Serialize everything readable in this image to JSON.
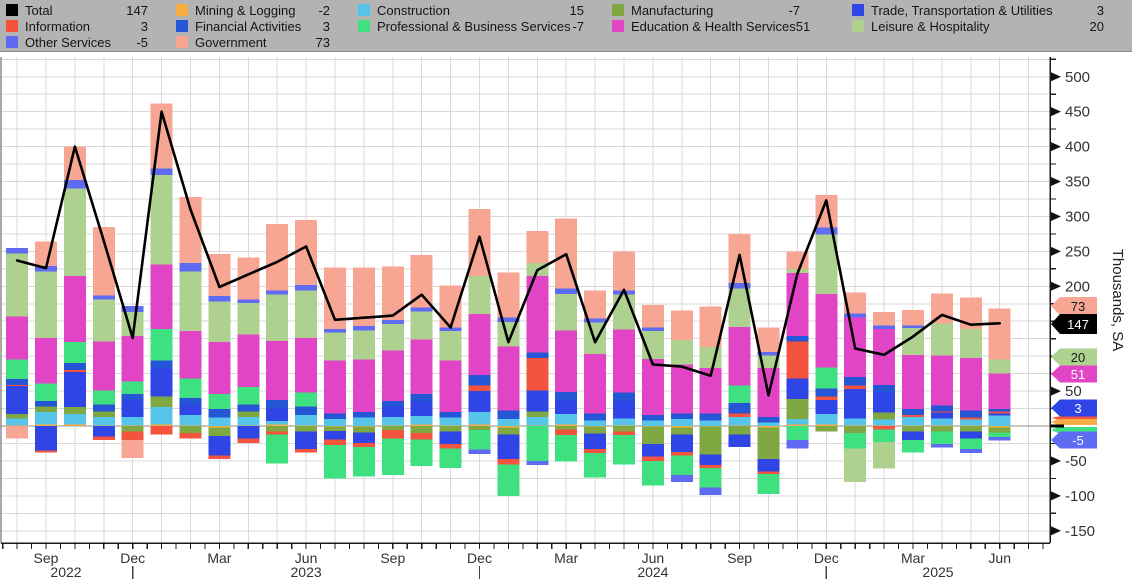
{
  "legend": {
    "items": [
      {
        "label": "Total",
        "value": "147",
        "color": "#000000"
      },
      {
        "label": "Mining & Logging",
        "value": "-2",
        "color": "#f6ad43"
      },
      {
        "label": "Construction",
        "value": "15",
        "color": "#57c4e9"
      },
      {
        "label": "Manufacturing",
        "value": "-7",
        "color": "#7fa842"
      },
      {
        "label": "Trade, Transportation & Utilities",
        "value": "3",
        "color": "#2f45e5"
      },
      {
        "label": "Information",
        "value": "3",
        "color": "#f4543e"
      },
      {
        "label": "Financial Activities",
        "value": "3",
        "color": "#2456d6"
      },
      {
        "label": "Professional & Business Services",
        "value": "-7",
        "color": "#3ee07f"
      },
      {
        "label": "Education & Health Services",
        "value": "51",
        "color": "#e145c5"
      },
      {
        "label": "Leisure & Hospitality",
        "value": "20",
        "color": "#aed190"
      },
      {
        "label": "Other Services",
        "value": "-5",
        "color": "#5f6bf2"
      },
      {
        "label": "Government",
        "value": "73",
        "color": "#f7a693"
      }
    ]
  },
  "chart_data": {
    "type": "bar",
    "stacked": true,
    "line_overlay": "Total",
    "title": "",
    "xlabel": "",
    "ylabel": "Thousands, SA",
    "ylim": [
      -167,
      528
    ],
    "grid": true,
    "months": [
      "Aug 2022",
      "Sep 2022",
      "Oct 2022",
      "Nov 2022",
      "Dec 2022",
      "Jan 2023",
      "Feb 2023",
      "Mar 2023",
      "Apr 2023",
      "May 2023",
      "Jun 2023",
      "Jul 2023",
      "Aug 2023",
      "Sep 2023",
      "Oct 2023",
      "Nov 2023",
      "Dec 2023",
      "Jan 2024",
      "Feb 2024",
      "Mar 2024",
      "Apr 2024",
      "May 2024",
      "Jun 2024",
      "Jul 2024",
      "Aug 2024",
      "Sep 2024",
      "Oct 2024",
      "Nov 2024",
      "Dec 2024",
      "Jan 2025",
      "Feb 2025",
      "Mar 2025",
      "Apr 2025",
      "May 2025",
      "Jun 2025"
    ],
    "series": [
      {
        "name": "Mining & Logging",
        "color": "#f6ad43",
        "values": [
          1,
          2,
          2,
          1,
          1,
          2,
          1,
          -2,
          1,
          2,
          1,
          -1,
          -1,
          1,
          2,
          1,
          2,
          -2,
          1,
          2,
          -1,
          1,
          -1,
          -2,
          -1,
          1,
          -2,
          2,
          2,
          1,
          1,
          1,
          1,
          1,
          -2
        ]
      },
      {
        "name": "Construction",
        "color": "#57c4e9",
        "values": [
          10,
          18,
          15,
          12,
          12,
          25,
          15,
          12,
          12,
          5,
          15,
          10,
          12,
          12,
          12,
          11,
          18,
          10,
          12,
          15,
          8,
          10,
          8,
          10,
          8,
          12,
          5,
          8,
          15,
          10,
          8,
          12,
          10,
          8,
          15
        ]
      },
      {
        "name": "Manufacturing",
        "color": "#7fa842",
        "values": [
          6,
          8,
          10,
          8,
          -8,
          15,
          -10,
          -12,
          8,
          -8,
          -8,
          -6,
          -8,
          -6,
          -10,
          -8,
          -6,
          -10,
          8,
          -5,
          -10,
          -8,
          -25,
          -10,
          -40,
          -12,
          -45,
          29,
          -8,
          -10,
          10,
          -8,
          -8,
          -8,
          -7
        ]
      },
      {
        "name": "Trade, Transportation & Utilities",
        "color": "#2f45e5",
        "values": [
          40,
          -35,
          50,
          -15,
          25,
          40,
          14,
          -28,
          -18,
          18,
          -25,
          -12,
          -15,
          15,
          22,
          -18,
          30,
          -35,
          30,
          20,
          -22,
          25,
          -18,
          -25,
          -15,
          -18,
          -18,
          29,
          20,
          42,
          30,
          -12,
          8,
          -10,
          3
        ]
      },
      {
        "name": "Information",
        "color": "#f4543e",
        "values": [
          2,
          -3,
          3,
          -5,
          -12,
          -12,
          -8,
          -5,
          -6,
          -4,
          -5,
          -8,
          -6,
          -12,
          -9,
          -6,
          8,
          -8,
          46,
          -8,
          -6,
          -5,
          -6,
          -5,
          -4,
          5,
          -4,
          53,
          5,
          5,
          -5,
          3,
          2,
          3,
          3
        ]
      },
      {
        "name": "Financial Activities",
        "color": "#2456d6",
        "values": [
          8,
          8,
          10,
          10,
          8,
          12,
          10,
          12,
          10,
          12,
          12,
          8,
          8,
          8,
          10,
          8,
          15,
          12,
          8,
          12,
          10,
          12,
          8,
          8,
          10,
          15,
          8,
          8,
          12,
          12,
          10,
          8,
          8,
          10,
          3
        ]
      },
      {
        "name": "Professional & Business Services",
        "color": "#3ee07f",
        "values": [
          28,
          25,
          30,
          20,
          18,
          45,
          28,
          22,
          25,
          -42,
          20,
          -48,
          -42,
          -52,
          -38,
          -28,
          -28,
          -45,
          -50,
          -38,
          -35,
          -42,
          -35,
          -28,
          -28,
          25,
          -28,
          -20,
          30,
          -22,
          -18,
          -18,
          -18,
          -15,
          -7
        ]
      },
      {
        "name": "Education & Health Services",
        "color": "#e145c5",
        "values": [
          62,
          65,
          95,
          70,
          65,
          92,
          68,
          74,
          75,
          85,
          78,
          76,
          75,
          72,
          78,
          74,
          87,
          92,
          110,
          88,
          85,
          90,
          80,
          70,
          65,
          84,
          70,
          90,
          105,
          85,
          80,
          78,
          72,
          75,
          51
        ]
      },
      {
        "name": "Leisure & Hospitality",
        "color": "#aed190",
        "values": [
          90,
          95,
          125,
          60,
          34,
          128,
          85,
          58,
          45,
          66,
          68,
          40,
          42,
          38,
          40,
          42,
          55,
          35,
          18,
          52,
          45,
          50,
          40,
          35,
          30,
          55,
          18,
          6,
          85,
          -48,
          -38,
          38,
          46,
          42,
          20
        ]
      },
      {
        "name": "Other Services",
        "color": "#5f6bf2",
        "values": [
          8,
          8,
          12,
          6,
          9,
          10,
          12,
          8,
          5,
          6,
          8,
          5,
          6,
          6,
          6,
          5,
          -6,
          6,
          -6,
          8,
          6,
          6,
          5,
          -10,
          -11,
          8,
          5,
          -12,
          10,
          6,
          5,
          4,
          -5,
          -6,
          -5
        ]
      },
      {
        "name": "Government",
        "color": "#f7a693",
        "values": [
          -18,
          35,
          48,
          98,
          -26,
          93,
          95,
          60,
          60,
          95,
          93,
          88,
          84,
          76,
          75,
          60,
          96,
          65,
          46,
          100,
          40,
          56,
          32,
          42,
          58,
          70,
          35,
          25,
          47,
          30,
          19,
          22,
          43,
          45,
          73
        ]
      }
    ],
    "total": {
      "name": "Total",
      "color": "#000000",
      "values": [
        237,
        226,
        400,
        265,
        126,
        450,
        310,
        199,
        217,
        235,
        257,
        152,
        155,
        158,
        188,
        141,
        271,
        120,
        223,
        246,
        120,
        195,
        88,
        85,
        72,
        245,
        44,
        218,
        323,
        111,
        102,
        128,
        159,
        145,
        147
      ]
    },
    "x_axis": {
      "quarter_labels": [
        {
          "label": "Sep",
          "index": 1
        },
        {
          "label": "Dec",
          "index": 4,
          "separator": true
        },
        {
          "label": "Mar",
          "index": 7
        },
        {
          "label": "Jun",
          "index": 10
        },
        {
          "label": "Sep",
          "index": 13
        },
        {
          "label": "Dec",
          "index": 16,
          "separator": true
        },
        {
          "label": "Mar",
          "index": 19
        },
        {
          "label": "Jun",
          "index": 22
        },
        {
          "label": "Sep",
          "index": 25
        },
        {
          "label": "Dec",
          "index": 28,
          "separator": true
        },
        {
          "label": "Mar",
          "index": 31
        },
        {
          "label": "Jun",
          "index": 34
        }
      ],
      "year_labels": [
        {
          "label": "2022",
          "index": 1,
          "dx": 20
        },
        {
          "label": "2023",
          "index": 10,
          "dx": 0
        },
        {
          "label": "2024",
          "index": 22,
          "dx": 0
        },
        {
          "label": "2025",
          "index": 31,
          "dx": 25
        }
      ]
    },
    "y_axis": {
      "title": "Thousands, SA",
      "tick_step": 25,
      "labeled_ticks": [
        500,
        450,
        400,
        350,
        300,
        250,
        200,
        50,
        -50,
        -100,
        -150
      ],
      "badges": [
        {
          "text": "73",
          "y": 306,
          "h": 18,
          "bg": "#f7a693",
          "fg": "#1a1a1a"
        },
        {
          "text": "147",
          "y": 324,
          "h": 20,
          "bg": "#000000",
          "fg": "#ffffff"
        },
        {
          "text": "20",
          "y": 357,
          "h": 17,
          "bg": "#aed190",
          "fg": "#1a1a1a"
        },
        {
          "text": "51",
          "y": 374,
          "h": 17,
          "bg": "#e145c5",
          "fg": "#ffffff"
        },
        {
          "text": "3",
          "y": 408,
          "h": 17,
          "bg": "#2f45e5",
          "fg": "#ffffff"
        },
        {
          "text": "-5",
          "y": 440,
          "h": 17,
          "bg": "#5f6bf2",
          "fg": "#ffffff"
        }
      ],
      "strips": [
        {
          "y": 418,
          "h": 3,
          "color": "#f4543e"
        },
        {
          "y": 422,
          "h": 6,
          "color": "#f6ad43"
        },
        {
          "y": 430,
          "h": 6,
          "color": "#3ee07f"
        }
      ],
      "zero_dash_y": 426
    },
    "colors": {
      "grid": "#d9d9d9",
      "zero_line": "#8c8c84",
      "spine": "#1a1a1a",
      "tick_text": "#333333",
      "plot_bg": "#ffffff",
      "legend_bg": "#b3b3b3"
    }
  }
}
